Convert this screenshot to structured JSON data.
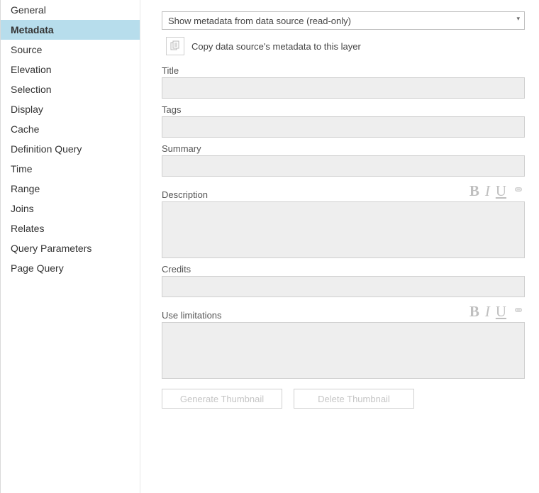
{
  "sidebar": {
    "items": [
      {
        "label": "General",
        "selected": false
      },
      {
        "label": "Metadata",
        "selected": true
      },
      {
        "label": "Source",
        "selected": false
      },
      {
        "label": "Elevation",
        "selected": false
      },
      {
        "label": "Selection",
        "selected": false
      },
      {
        "label": "Display",
        "selected": false
      },
      {
        "label": "Cache",
        "selected": false
      },
      {
        "label": "Definition Query",
        "selected": false
      },
      {
        "label": "Time",
        "selected": false
      },
      {
        "label": "Range",
        "selected": false
      },
      {
        "label": "Joins",
        "selected": false
      },
      {
        "label": "Relates",
        "selected": false
      },
      {
        "label": "Query Parameters",
        "selected": false
      },
      {
        "label": "Page Query",
        "selected": false
      }
    ]
  },
  "main": {
    "dropdown_value": "Show metadata from data source (read-only)",
    "copy_label": "Copy data source's metadata to this layer",
    "fields": {
      "title_label": "Title",
      "tags_label": "Tags",
      "summary_label": "Summary",
      "description_label": "Description",
      "credits_label": "Credits",
      "use_limitations_label": "Use limitations"
    },
    "rich_text": {
      "bold": "B",
      "italic": "I",
      "underline": "U"
    },
    "buttons": {
      "generate": "Generate Thumbnail",
      "delete": "Delete Thumbnail"
    }
  },
  "colors": {
    "sidebar_selected_bg": "#b7ddec",
    "input_bg": "#eeeeee",
    "border": "#cfcfcf",
    "disabled_text": "#c5c5c5"
  }
}
